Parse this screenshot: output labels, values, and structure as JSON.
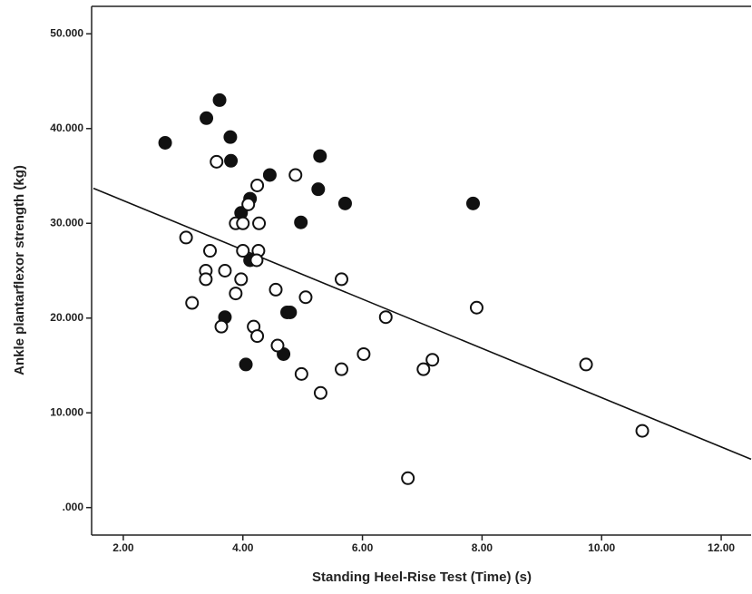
{
  "chart_data": {
    "type": "scatter",
    "x_label": "Standing Heel-Rise Test (Time) (s)",
    "y_label": "Ankle plantarflexor strength (kg)",
    "xlim": [
      1.47,
      12.5
    ],
    "ylim": [
      -2.9,
      52.9
    ],
    "xticks": [
      {
        "value": 2,
        "label": "2.00"
      },
      {
        "value": 4,
        "label": "4.00"
      },
      {
        "value": 6,
        "label": "6.00"
      },
      {
        "value": 8,
        "label": "8.00"
      },
      {
        "value": 10,
        "label": "10.00"
      },
      {
        "value": 12,
        "label": "12.00"
      }
    ],
    "yticks": [
      {
        "value": 0,
        "label": ".000"
      },
      {
        "value": 10,
        "label": "10.000"
      },
      {
        "value": 20,
        "label": "20.000"
      },
      {
        "value": 30,
        "label": "30.000"
      },
      {
        "value": 40,
        "label": "40.000"
      },
      {
        "value": 50,
        "label": "50.000"
      }
    ],
    "series": [
      {
        "color": "#111111",
        "filled": true,
        "x": [
          2.7,
          3.39,
          3.61,
          3.79,
          3.8,
          4.45,
          5.29,
          5.26,
          5.71,
          7.85,
          4.97,
          4.12,
          3.97,
          4.12,
          3.7,
          4.74,
          4.79,
          4.05,
          4.68
        ],
        "values": [
          38.5,
          41.1,
          43.0,
          39.1,
          36.6,
          35.1,
          37.1,
          33.6,
          32.1,
          32.1,
          30.1,
          32.6,
          31.1,
          26.1,
          20.1,
          20.6,
          20.6,
          15.1,
          16.2
        ]
      },
      {
        "color": "#111111",
        "filled": false,
        "x": [
          3.05,
          3.56,
          3.45,
          3.38,
          3.38,
          3.15,
          3.7,
          3.88,
          3.97,
          3.64,
          3.88,
          4.0,
          4.0,
          4.27,
          4.24,
          4.09,
          4.26,
          4.23,
          4.18,
          4.24,
          4.55,
          4.88,
          5.05,
          5.65,
          4.58,
          4.98,
          5.3,
          5.65,
          6.02,
          6.39,
          7.91,
          7.17,
          7.02,
          9.74,
          10.68,
          6.76
        ],
        "values": [
          28.5,
          36.5,
          27.1,
          25.0,
          24.1,
          21.6,
          25.0,
          22.6,
          24.1,
          19.1,
          30.0,
          30.0,
          27.1,
          30.0,
          34.0,
          32.0,
          27.1,
          26.1,
          19.1,
          18.1,
          23.0,
          35.1,
          22.2,
          24.1,
          17.1,
          14.1,
          12.1,
          14.6,
          16.2,
          20.1,
          21.1,
          15.6,
          14.6,
          15.1,
          8.1,
          3.1
        ]
      }
    ],
    "fit_line": {
      "type": "line",
      "color": "#111111",
      "x": [
        1.5,
        12.5
      ],
      "values": [
        33.7,
        5.1
      ]
    }
  }
}
